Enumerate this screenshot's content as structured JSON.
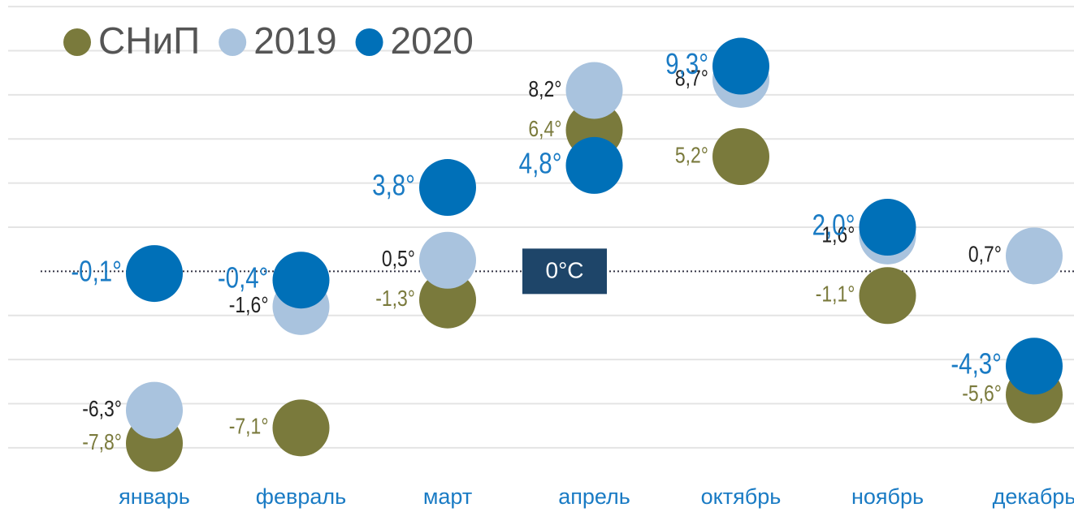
{
  "chart_data": {
    "type": "dot",
    "categories": [
      "январь",
      "февраль",
      "март",
      "апрель",
      "октябрь",
      "ноябрь",
      "декабрь"
    ],
    "series": [
      {
        "name": "СНиП",
        "color": "#7a7a3c",
        "values": [
          -7.8,
          -7.1,
          -1.3,
          6.4,
          5.2,
          -1.1,
          -5.6
        ],
        "value_labels": [
          "-7,8°",
          "-7,1°",
          "-1,3°",
          "6,4°",
          "5,2°",
          "-1,1°",
          "-5,6°"
        ]
      },
      {
        "name": "2019",
        "color": "#a9c3de",
        "values": [
          -6.3,
          -1.6,
          0.5,
          8.2,
          8.7,
          1.6,
          0.7
        ],
        "value_labels": [
          "-6,3°",
          "-1,6°",
          "0,5°",
          "8,2°",
          "8,7°",
          "1,6°",
          "0,7°"
        ]
      },
      {
        "name": "2020",
        "color": "#0070b8",
        "values": [
          -0.1,
          -0.4,
          3.8,
          4.8,
          9.3,
          2.0,
          -4.3
        ],
        "value_labels": [
          "-0,1°",
          "-0,4°",
          "3,8°",
          "4,8°",
          "9,3°",
          "2,0°",
          "-4,3°"
        ]
      }
    ],
    "ylim": [
      -9,
      12.3
    ],
    "yticks": [
      -8,
      -6,
      -4,
      -2,
      2,
      4,
      6,
      8,
      10,
      12
    ],
    "grid": true,
    "zero_label": "0°C"
  }
}
